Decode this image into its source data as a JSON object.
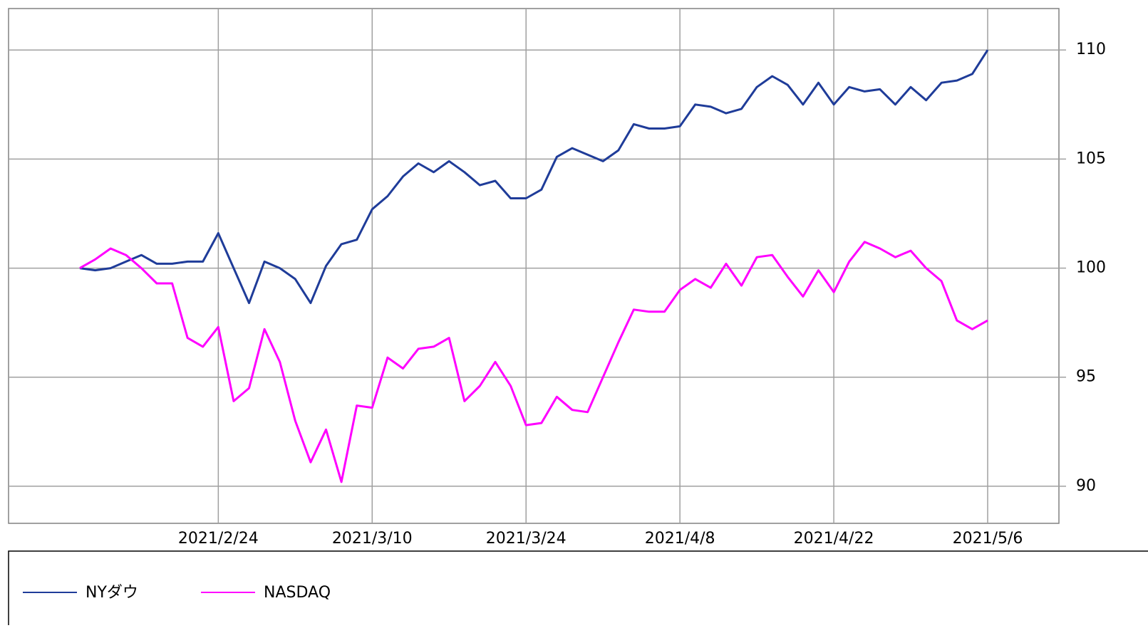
{
  "chart_data": {
    "type": "line",
    "categories": [
      null,
      null,
      null,
      null,
      null,
      null,
      null,
      null,
      null,
      "2021/2/24",
      null,
      null,
      null,
      null,
      null,
      null,
      null,
      null,
      null,
      "2021/3/10",
      null,
      null,
      null,
      null,
      null,
      null,
      null,
      null,
      null,
      "2021/3/24",
      null,
      null,
      null,
      null,
      null,
      null,
      null,
      null,
      null,
      "2021/4/8",
      null,
      null,
      null,
      null,
      null,
      null,
      null,
      null,
      null,
      "2021/4/22",
      null,
      null,
      null,
      null,
      null,
      null,
      null,
      null,
      null,
      "2021/5/6"
    ],
    "series": [
      {
        "name": "NYダウ",
        "color": "#1f3c99",
        "values": [
          100,
          99.9,
          100.0,
          100.3,
          100.6,
          100.2,
          100.2,
          100.3,
          100.3,
          101.6,
          100.0,
          98.4,
          100.3,
          100.0,
          99.5,
          98.4,
          100.1,
          101.1,
          101.3,
          102.7,
          103.3,
          104.2,
          104.8,
          104.4,
          104.9,
          104.4,
          103.8,
          104.0,
          103.2,
          103.2,
          103.6,
          105.1,
          105.5,
          105.2,
          104.9,
          105.4,
          106.6,
          106.4,
          106.4,
          106.5,
          107.5,
          107.4,
          107.1,
          107.3,
          108.3,
          108.8,
          108.4,
          107.5,
          108.5,
          107.5,
          108.3,
          108.1,
          108.2,
          107.5,
          108.3,
          107.7,
          108.5,
          108.6,
          108.9,
          110.0
        ]
      },
      {
        "name": "NASDAQ",
        "color": "#ff00ff",
        "values": [
          100,
          100.4,
          100.9,
          100.6,
          100.0,
          99.3,
          99.3,
          96.8,
          96.4,
          97.3,
          93.9,
          94.5,
          97.2,
          95.7,
          93.0,
          91.1,
          92.6,
          90.2,
          93.7,
          93.6,
          95.9,
          95.4,
          96.3,
          96.4,
          96.8,
          93.9,
          94.6,
          95.7,
          94.6,
          92.8,
          92.9,
          94.1,
          93.5,
          93.4,
          95.0,
          96.6,
          98.1,
          98.0,
          98.0,
          99.0,
          99.5,
          99.1,
          100.2,
          99.2,
          100.5,
          100.6,
          99.6,
          98.7,
          99.9,
          98.9,
          100.3,
          101.2,
          100.9,
          100.5,
          100.8,
          100.0,
          99.4,
          97.6,
          97.2,
          97.6
        ]
      }
    ],
    "ylim": [
      88.3,
      111.9
    ],
    "yticks": [
      90,
      95,
      100,
      105,
      110
    ],
    "grid": true
  }
}
